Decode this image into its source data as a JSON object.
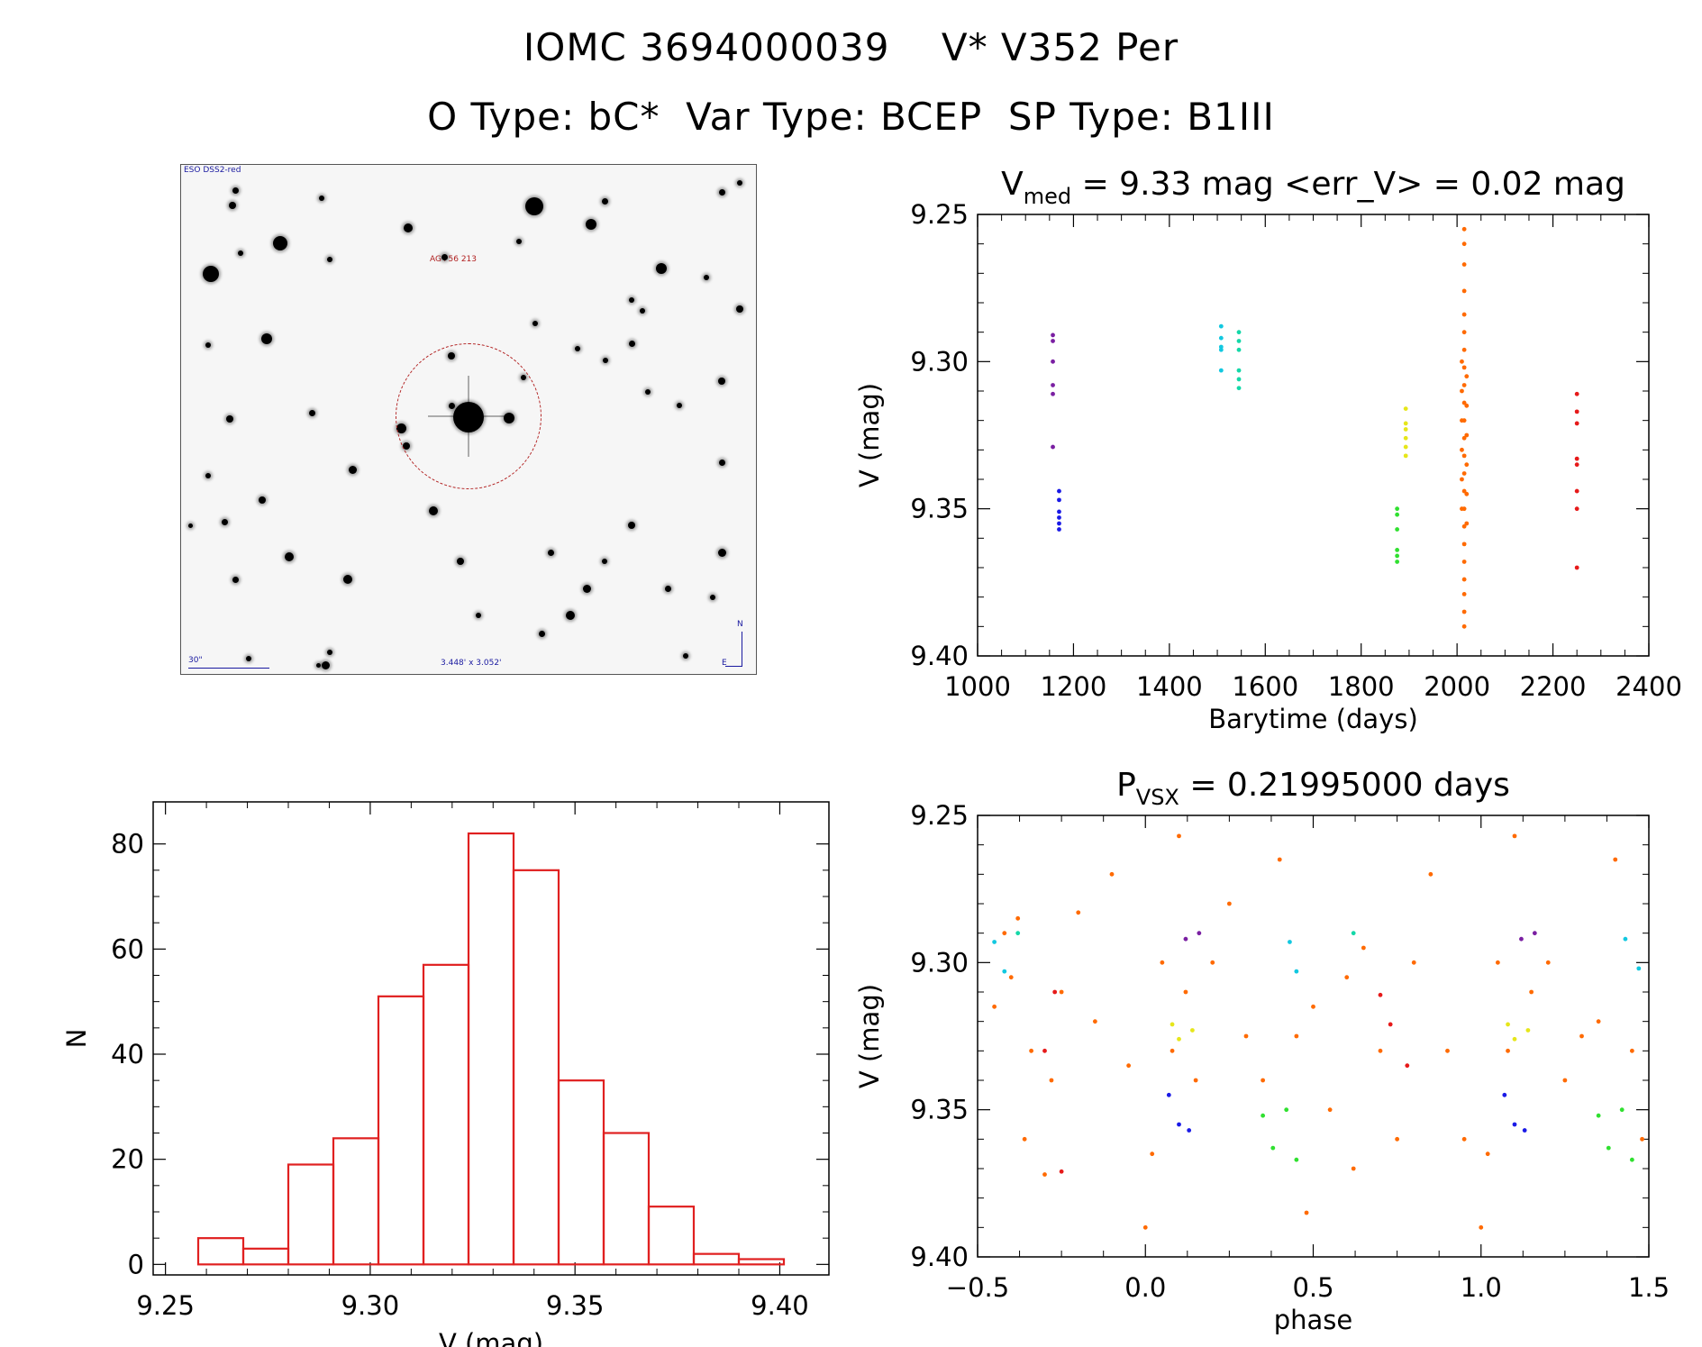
{
  "header": {
    "line1": "IOMC 3694000039    V* V352 Per",
    "line2": "O Type: bC*  Var Type: BCEP  SP Type: B1III"
  },
  "sky_image": {
    "survey_label": "ESO DSS2-red",
    "target_label": "AG+56 213",
    "scale_label": "30\"",
    "fov_label": "3.448' x 3.052'",
    "north_label": "N",
    "east_label": "E",
    "ring_color": "#b22222"
  },
  "chart_data": [
    {
      "type": "scatter",
      "title_main": "V",
      "title_sub": "med",
      "title_rest": " = 9.33 mag <err_V> = 0.02 mag",
      "xlabel": "Barytime (days)",
      "ylabel": "V (mag)",
      "xlim": [
        1000,
        2400
      ],
      "ylim": [
        9.4,
        9.25
      ],
      "xticks": [
        "1000",
        "1200",
        "1400",
        "1600",
        "1800",
        "2000",
        "2200",
        "2400"
      ],
      "yticks": [
        "9.25",
        "9.30",
        "9.35",
        "9.40"
      ],
      "series": [
        {
          "color": "#7a1fa2",
          "points": [
            [
              1157,
              9.291
            ],
            [
              1157,
              9.293
            ],
            [
              1157,
              9.3
            ],
            [
              1157,
              9.308
            ],
            [
              1157,
              9.311
            ],
            [
              1157,
              9.329
            ]
          ]
        },
        {
          "color": "#1a1ae6",
          "points": [
            [
              1170,
              9.344
            ],
            [
              1170,
              9.347
            ],
            [
              1170,
              9.351
            ],
            [
              1170,
              9.353
            ],
            [
              1170,
              9.355
            ],
            [
              1170,
              9.357
            ]
          ]
        },
        {
          "color": "#12c8e0",
          "points": [
            [
              1508,
              9.288
            ],
            [
              1508,
              9.292
            ],
            [
              1508,
              9.295
            ],
            [
              1508,
              9.296
            ],
            [
              1508,
              9.303
            ]
          ]
        },
        {
          "color": "#14d8a8",
          "points": [
            [
              1545,
              9.29
            ],
            [
              1545,
              9.293
            ],
            [
              1545,
              9.296
            ],
            [
              1545,
              9.303
            ],
            [
              1545,
              9.306
            ],
            [
              1545,
              9.309
            ]
          ]
        },
        {
          "color": "#30e030",
          "points": [
            [
              1875,
              9.35
            ],
            [
              1875,
              9.352
            ],
            [
              1875,
              9.357
            ],
            [
              1875,
              9.364
            ],
            [
              1875,
              9.366
            ],
            [
              1875,
              9.368
            ]
          ]
        },
        {
          "color": "#e6e61a",
          "points": [
            [
              1893,
              9.316
            ],
            [
              1893,
              9.321
            ],
            [
              1893,
              9.323
            ],
            [
              1893,
              9.326
            ],
            [
              1893,
              9.329
            ],
            [
              1893,
              9.332
            ]
          ]
        },
        {
          "color": "#ff6a00",
          "points": [
            [
              2015,
              9.255
            ],
            [
              2015,
              9.26
            ],
            [
              2015,
              9.267
            ],
            [
              2015,
              9.276
            ],
            [
              2015,
              9.284
            ],
            [
              2015,
              9.29
            ],
            [
              2015,
              9.296
            ],
            [
              2015,
              9.302
            ],
            [
              2015,
              9.308
            ],
            [
              2015,
              9.314
            ],
            [
              2015,
              9.32
            ],
            [
              2015,
              9.326
            ],
            [
              2015,
              9.332
            ],
            [
              2015,
              9.338
            ],
            [
              2015,
              9.344
            ],
            [
              2015,
              9.35
            ],
            [
              2015,
              9.356
            ],
            [
              2015,
              9.362
            ],
            [
              2015,
              9.368
            ],
            [
              2015,
              9.374
            ],
            [
              2015,
              9.379
            ],
            [
              2015,
              9.385
            ],
            [
              2015,
              9.39
            ],
            [
              2010,
              9.3
            ],
            [
              2010,
              9.31
            ],
            [
              2010,
              9.32
            ],
            [
              2010,
              9.33
            ],
            [
              2010,
              9.34
            ],
            [
              2010,
              9.35
            ],
            [
              2020,
              9.305
            ],
            [
              2020,
              9.315
            ],
            [
              2020,
              9.325
            ],
            [
              2020,
              9.335
            ],
            [
              2020,
              9.345
            ],
            [
              2020,
              9.355
            ]
          ]
        },
        {
          "color": "#e61a1a",
          "points": [
            [
              2250,
              9.311
            ],
            [
              2250,
              9.317
            ],
            [
              2250,
              9.321
            ],
            [
              2250,
              9.333
            ],
            [
              2250,
              9.335
            ],
            [
              2250,
              9.344
            ],
            [
              2250,
              9.35
            ],
            [
              2250,
              9.37
            ]
          ]
        }
      ]
    },
    {
      "type": "scatter",
      "title_main": "P",
      "title_sub": "VSX",
      "title_rest": " = 0.21995000 days",
      "xlabel": "phase",
      "ylabel": "V (mag)",
      "xlim": [
        -0.5,
        1.5
      ],
      "ylim": [
        9.4,
        9.25
      ],
      "xticks": [
        "−0.5",
        "0.0",
        "0.5",
        "1.0",
        "1.5"
      ],
      "yticks": [
        "9.25",
        "9.30",
        "9.35",
        "9.40"
      ],
      "series": [
        {
          "color": "#ff6a00",
          "points": [
            [
              -0.45,
              9.315
            ],
            [
              -0.42,
              9.29
            ],
            [
              -0.4,
              9.305
            ],
            [
              -0.38,
              9.285
            ],
            [
              -0.36,
              9.36
            ],
            [
              -0.34,
              9.33
            ],
            [
              -0.3,
              9.372
            ],
            [
              -0.28,
              9.34
            ],
            [
              -0.25,
              9.31
            ],
            [
              -0.2,
              9.283
            ],
            [
              -0.15,
              9.32
            ],
            [
              -0.1,
              9.27
            ],
            [
              -0.05,
              9.335
            ],
            [
              0.0,
              9.39
            ],
            [
              0.02,
              9.365
            ],
            [
              0.05,
              9.3
            ],
            [
              0.08,
              9.33
            ],
            [
              0.1,
              9.257
            ],
            [
              0.12,
              9.31
            ],
            [
              0.15,
              9.34
            ],
            [
              0.2,
              9.3
            ],
            [
              0.25,
              9.28
            ],
            [
              0.3,
              9.325
            ],
            [
              0.35,
              9.34
            ],
            [
              0.4,
              9.265
            ],
            [
              0.45,
              9.325
            ],
            [
              0.48,
              9.385
            ],
            [
              0.5,
              9.315
            ],
            [
              0.55,
              9.35
            ],
            [
              0.6,
              9.305
            ],
            [
              0.62,
              9.37
            ],
            [
              0.65,
              9.295
            ],
            [
              0.7,
              9.33
            ],
            [
              0.75,
              9.36
            ],
            [
              0.8,
              9.3
            ],
            [
              0.85,
              9.27
            ],
            [
              0.9,
              9.33
            ],
            [
              0.95,
              9.36
            ],
            [
              1.0,
              9.39
            ],
            [
              1.02,
              9.365
            ],
            [
              1.05,
              9.3
            ],
            [
              1.08,
              9.33
            ],
            [
              1.1,
              9.257
            ],
            [
              1.15,
              9.31
            ],
            [
              1.2,
              9.3
            ],
            [
              1.25,
              9.34
            ],
            [
              1.3,
              9.325
            ],
            [
              1.35,
              9.32
            ],
            [
              1.4,
              9.265
            ],
            [
              1.45,
              9.33
            ],
            [
              1.48,
              9.36
            ]
          ]
        },
        {
          "color": "#12c8e0",
          "points": [
            [
              -0.45,
              9.293
            ],
            [
              -0.42,
              9.303
            ],
            [
              0.43,
              9.293
            ],
            [
              0.45,
              9.303
            ],
            [
              1.43,
              9.292
            ],
            [
              1.47,
              9.302
            ]
          ]
        },
        {
          "color": "#14d8a8",
          "points": [
            [
              -0.38,
              9.29
            ],
            [
              0.62,
              9.29
            ]
          ]
        },
        {
          "color": "#7a1fa2",
          "points": [
            [
              0.12,
              9.292
            ],
            [
              0.16,
              9.29
            ],
            [
              1.12,
              9.292
            ],
            [
              1.16,
              9.29
            ]
          ]
        },
        {
          "color": "#1a1ae6",
          "points": [
            [
              0.07,
              9.345
            ],
            [
              0.1,
              9.355
            ],
            [
              0.13,
              9.357
            ],
            [
              1.07,
              9.345
            ],
            [
              1.1,
              9.355
            ],
            [
              1.13,
              9.357
            ]
          ]
        },
        {
          "color": "#e6e61a",
          "points": [
            [
              0.08,
              9.321
            ],
            [
              0.1,
              9.326
            ],
            [
              0.14,
              9.323
            ],
            [
              1.08,
              9.321
            ],
            [
              1.1,
              9.326
            ],
            [
              1.14,
              9.323
            ]
          ]
        },
        {
          "color": "#30e030",
          "points": [
            [
              0.35,
              9.352
            ],
            [
              0.38,
              9.363
            ],
            [
              0.42,
              9.35
            ],
            [
              0.45,
              9.367
            ],
            [
              1.35,
              9.352
            ],
            [
              1.38,
              9.363
            ],
            [
              1.42,
              9.35
            ],
            [
              1.45,
              9.367
            ]
          ]
        },
        {
          "color": "#e61a1a",
          "points": [
            [
              -0.27,
              9.31
            ],
            [
              -0.3,
              9.33
            ],
            [
              -0.25,
              9.371
            ],
            [
              0.7,
              9.311
            ],
            [
              0.73,
              9.321
            ],
            [
              0.78,
              9.335
            ]
          ]
        }
      ]
    },
    {
      "type": "bar",
      "xlabel": "V (mag)",
      "ylabel": "N",
      "xlim": [
        9.247,
        9.412
      ],
      "ylim": [
        -2,
        88
      ],
      "xticks": [
        "9.25",
        "9.30",
        "9.35",
        "9.40"
      ],
      "yticks": [
        "0",
        "20",
        "40",
        "60",
        "80"
      ],
      "bar_color": "#e02020",
      "bins": [
        {
          "lo": 9.258,
          "hi": 9.269,
          "n": 5
        },
        {
          "lo": 9.269,
          "hi": 9.28,
          "n": 3
        },
        {
          "lo": 9.28,
          "hi": 9.291,
          "n": 19
        },
        {
          "lo": 9.291,
          "hi": 9.302,
          "n": 24
        },
        {
          "lo": 9.302,
          "hi": 9.313,
          "n": 51
        },
        {
          "lo": 9.313,
          "hi": 9.324,
          "n": 57
        },
        {
          "lo": 9.324,
          "hi": 9.335,
          "n": 82
        },
        {
          "lo": 9.335,
          "hi": 9.346,
          "n": 75
        },
        {
          "lo": 9.346,
          "hi": 9.357,
          "n": 35
        },
        {
          "lo": 9.357,
          "hi": 9.368,
          "n": 25
        },
        {
          "lo": 9.368,
          "hi": 9.379,
          "n": 11
        },
        {
          "lo": 9.379,
          "hi": 9.39,
          "n": 2
        },
        {
          "lo": 9.39,
          "hi": 9.401,
          "n": 1
        }
      ]
    }
  ]
}
